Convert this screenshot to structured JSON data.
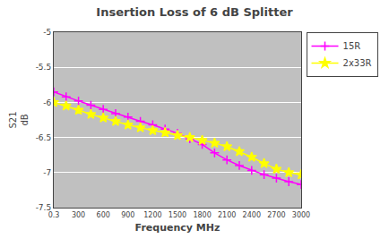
{
  "chart_data": {
    "type": "line",
    "title": "Insertion Loss of 6 dB Splitter",
    "xlabel": "Frequency MHz",
    "ylabel": "S21\ndB",
    "xlim": [
      0.3,
      3000
    ],
    "ylim": [
      -7.5,
      -5
    ],
    "xticks": [
      0.3,
      300,
      600,
      900,
      1200,
      1500,
      1800,
      2100,
      2400,
      2700,
      3000
    ],
    "yticks": [
      -7.5,
      -7,
      -6.5,
      -6,
      -5.5,
      -5
    ],
    "grid": "y",
    "legend": "right",
    "series": [
      {
        "name": "15R",
        "color": "#ff00ff",
        "marker": "plus",
        "x": [
          0.3,
          150,
          300,
          450,
          600,
          750,
          900,
          1050,
          1200,
          1350,
          1500,
          1650,
          1800,
          1950,
          2100,
          2250,
          2400,
          2550,
          2700,
          2850,
          3000
        ],
        "values": [
          -5.85,
          -5.92,
          -5.98,
          -6.04,
          -6.1,
          -6.16,
          -6.21,
          -6.27,
          -6.32,
          -6.38,
          -6.44,
          -6.52,
          -6.6,
          -6.72,
          -6.82,
          -6.9,
          -6.97,
          -7.03,
          -7.08,
          -7.13,
          -7.17
        ]
      },
      {
        "name": "2x33R",
        "color": "#ffff00",
        "marker": "star",
        "x": [
          0.3,
          150,
          300,
          450,
          600,
          750,
          900,
          1050,
          1200,
          1350,
          1500,
          1650,
          1800,
          1950,
          2100,
          2250,
          2400,
          2550,
          2700,
          2850,
          3000
        ],
        "values": [
          -6.0,
          -6.05,
          -6.11,
          -6.17,
          -6.22,
          -6.27,
          -6.32,
          -6.36,
          -6.4,
          -6.43,
          -6.47,
          -6.5,
          -6.54,
          -6.58,
          -6.63,
          -6.7,
          -6.78,
          -6.87,
          -6.95,
          -7.0,
          -7.03
        ]
      }
    ]
  }
}
